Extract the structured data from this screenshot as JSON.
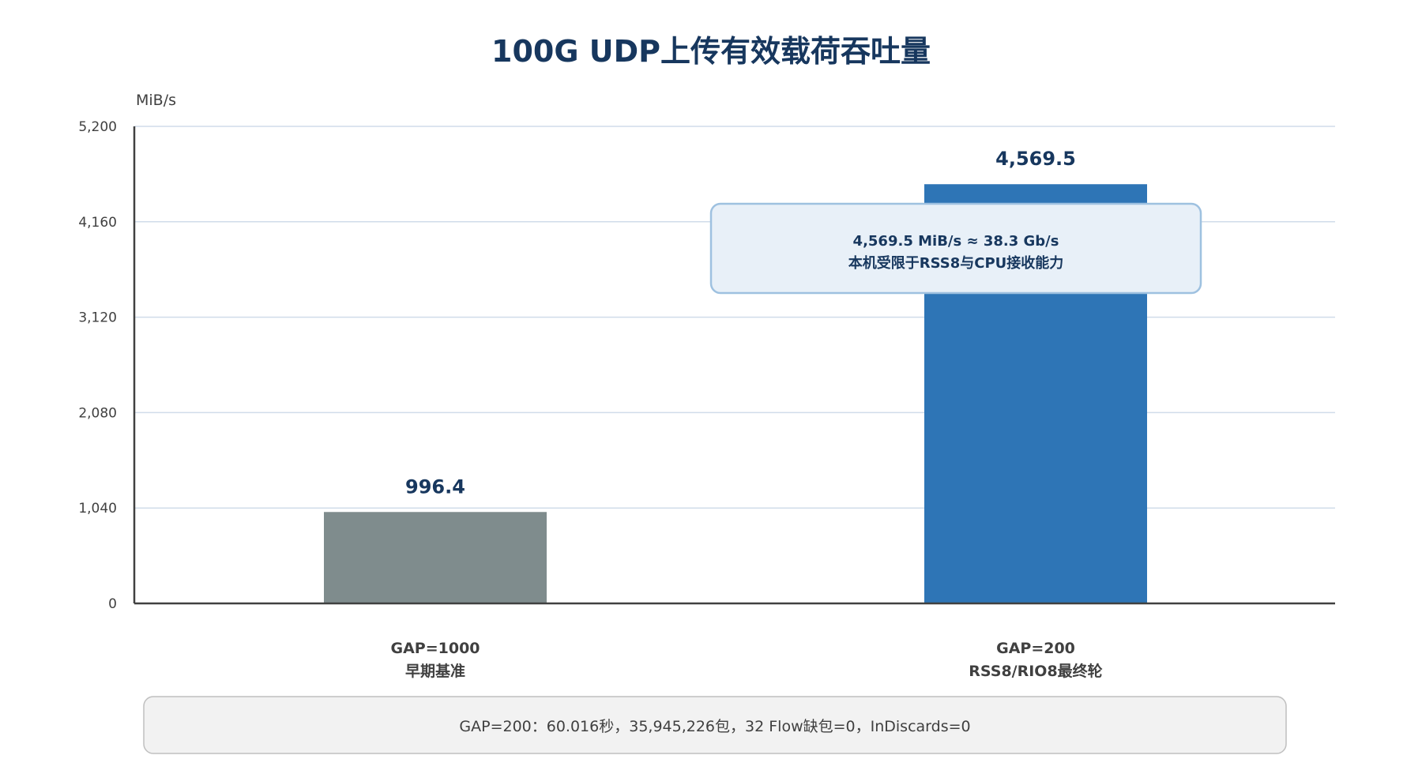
{
  "colors": {
    "title": "#17375e",
    "baseline_bar": "#7f8c8d",
    "final_bar": "#2e75b6",
    "grid": "#d0dcea",
    "axis": "#404040",
    "callout_fill": "#e8f0f8",
    "callout_border": "#9ec1e0",
    "note_fill": "#f2f2f2",
    "note_border": "#bfbfbf"
  },
  "chart_data": {
    "type": "bar",
    "title": "100G UDP上传有效载荷吞吐量",
    "unit": "MiB/s",
    "xlabel": "",
    "ylabel": "",
    "ylim": [
      0,
      5200
    ],
    "yticks": [
      0,
      1040,
      2080,
      3120,
      4160,
      5200
    ],
    "ytick_labels": [
      "0",
      "1,040",
      "2,080",
      "3,120",
      "4,160",
      "5,200"
    ],
    "grid": true,
    "categories": [
      {
        "line1": "GAP=1000",
        "line2": "早期基准"
      },
      {
        "line1": "GAP=200",
        "line2": "RSS8/RIO8最终轮"
      }
    ],
    "values": [
      996.4,
      4569.5
    ],
    "value_labels": [
      "996.4",
      "4,569.5"
    ],
    "bar_colors": [
      "#7f8c8d",
      "#2e75b6"
    ],
    "callout": {
      "line1": "4,569.5 MiB/s ≈ 38.3 Gb/s",
      "line2": "本机受限于RSS8与CPU接收能力"
    },
    "note": "GAP=200：60.016秒，35,945,226包，32 Flow缺包=0，InDiscards=0"
  }
}
